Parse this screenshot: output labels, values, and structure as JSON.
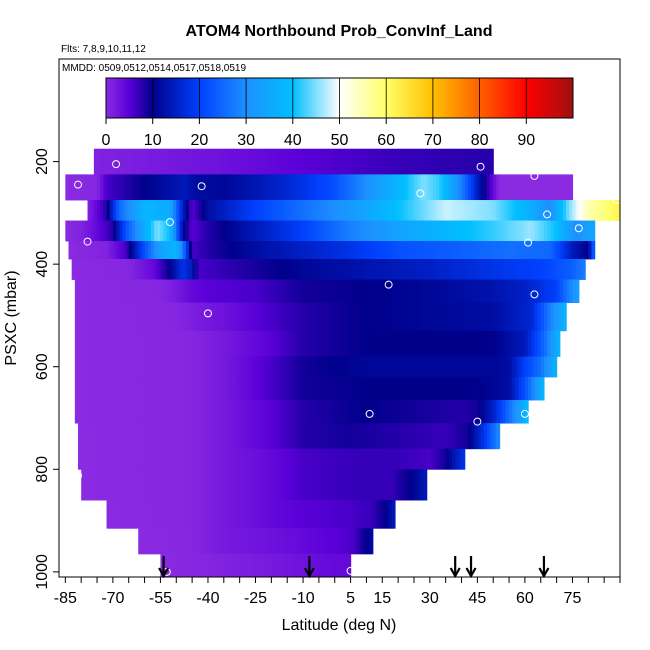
{
  "chart_data": {
    "type": "heatmap",
    "title": "ATOM4 Northbound Prob_ConvInf_Land",
    "flights_label": "Flts: 7,8,9,10,11,12",
    "dates_label": "MMDD: 0509,0512,0514,0517,0518,0519",
    "xlabel": "Latitude (deg N)",
    "ylabel": "PSXC (mbar)",
    "xlim": [
      -87,
      90
    ],
    "ylim": [
      1010,
      0
    ],
    "x_ticks": [
      -85,
      -70,
      -55,
      -40,
      -25,
      -10,
      5,
      15,
      30,
      45,
      60,
      75
    ],
    "x_minor_step": 5,
    "y_ticks": [
      200,
      400,
      600,
      800,
      1000
    ],
    "colorbar": {
      "min": 0,
      "max": 100,
      "ticks": [
        0,
        10,
        20,
        30,
        40,
        50,
        60,
        70,
        80,
        90
      ],
      "stops": [
        {
          "v": 0,
          "c": "#8a2be2"
        },
        {
          "v": 5,
          "c": "#5a00d8"
        },
        {
          "v": 10,
          "c": "#00008b"
        },
        {
          "v": 20,
          "c": "#0040ff"
        },
        {
          "v": 30,
          "c": "#1e90ff"
        },
        {
          "v": 40,
          "c": "#00bfff"
        },
        {
          "v": 50,
          "c": "#ffffff"
        },
        {
          "v": 60,
          "c": "#ffff66"
        },
        {
          "v": 70,
          "c": "#ffc000"
        },
        {
          "v": 80,
          "c": "#ff6000"
        },
        {
          "v": 90,
          "c": "#ff0000"
        },
        {
          "v": 100,
          "c": "#a01010"
        }
      ]
    },
    "pressure_levels": [
      {
        "p_top": 175,
        "p_bot": 225,
        "lat_min": -76,
        "lat_max": 50,
        "knots": [
          [
            -76,
            1
          ],
          [
            -55,
            2
          ],
          [
            -35,
            3
          ],
          [
            -10,
            5
          ],
          [
            20,
            7
          ],
          [
            50,
            8
          ]
        ]
      },
      {
        "p_top": 225,
        "p_bot": 275,
        "lat_min": -85,
        "lat_max": 75,
        "knots": [
          [
            -85,
            0
          ],
          [
            -75,
            0.5
          ],
          [
            -72,
            6
          ],
          [
            -60,
            10
          ],
          [
            -47,
            14
          ],
          [
            -45,
            12
          ],
          [
            -35,
            11
          ],
          [
            -15,
            16
          ],
          [
            0,
            22
          ],
          [
            10,
            30
          ],
          [
            20,
            38
          ],
          [
            28,
            45
          ],
          [
            33,
            42
          ],
          [
            40,
            28
          ],
          [
            46,
            12
          ],
          [
            48,
            8
          ],
          [
            52,
            0
          ],
          [
            75,
            0
          ]
        ]
      },
      {
        "p_top": 275,
        "p_bot": 315,
        "lat_min": -78,
        "lat_max": 90,
        "knots": [
          [
            -78,
            1
          ],
          [
            -72,
            8
          ],
          [
            -68,
            25
          ],
          [
            -60,
            38
          ],
          [
            -52,
            36
          ],
          [
            -48,
            15
          ],
          [
            -45,
            5
          ],
          [
            -40,
            12
          ],
          [
            -25,
            20
          ],
          [
            -10,
            26
          ],
          [
            5,
            32
          ],
          [
            20,
            40
          ],
          [
            35,
            48
          ],
          [
            50,
            45
          ],
          [
            60,
            38
          ],
          [
            68,
            30
          ],
          [
            74,
            45
          ],
          [
            80,
            55
          ],
          [
            90,
            62
          ]
        ]
      },
      {
        "p_top": 315,
        "p_bot": 355,
        "lat_min": -85,
        "lat_max": 82,
        "knots": [
          [
            -85,
            0
          ],
          [
            -80,
            1
          ],
          [
            -75,
            4
          ],
          [
            -70,
            8
          ],
          [
            -66,
            22
          ],
          [
            -56,
            45
          ],
          [
            -52,
            40
          ],
          [
            -48,
            12
          ],
          [
            -45,
            5
          ],
          [
            -40,
            8
          ],
          [
            -25,
            14
          ],
          [
            -10,
            20
          ],
          [
            5,
            28
          ],
          [
            20,
            34
          ],
          [
            35,
            38
          ],
          [
            50,
            42
          ],
          [
            62,
            46
          ],
          [
            70,
            40
          ],
          [
            76,
            30
          ],
          [
            82,
            35
          ]
        ]
      },
      {
        "p_top": 355,
        "p_bot": 390,
        "lat_min": -84,
        "lat_max": 82,
        "knots": [
          [
            -84,
            0
          ],
          [
            -72,
            1
          ],
          [
            -66,
            6
          ],
          [
            -60,
            22
          ],
          [
            -55,
            34
          ],
          [
            -50,
            38
          ],
          [
            -47,
            22
          ],
          [
            -45,
            6
          ],
          [
            -40,
            8
          ],
          [
            -25,
            12
          ],
          [
            -10,
            15
          ],
          [
            5,
            18
          ],
          [
            20,
            22
          ],
          [
            40,
            24
          ],
          [
            55,
            26
          ],
          [
            68,
            25
          ],
          [
            75,
            14
          ],
          [
            80,
            10
          ],
          [
            82,
            26
          ]
        ]
      },
      {
        "p_top": 390,
        "p_bot": 430,
        "lat_min": -83,
        "lat_max": 79,
        "knots": [
          [
            -83,
            0
          ],
          [
            -65,
            0.5
          ],
          [
            -57,
            4
          ],
          [
            -52,
            10
          ],
          [
            -48,
            18
          ],
          [
            -45,
            14
          ],
          [
            -43,
            6
          ],
          [
            -30,
            8
          ],
          [
            -10,
            11
          ],
          [
            10,
            13
          ],
          [
            30,
            15
          ],
          [
            50,
            18
          ],
          [
            65,
            20
          ],
          [
            75,
            24
          ],
          [
            79,
            28
          ]
        ]
      },
      {
        "p_top": 430,
        "p_bot": 475,
        "lat_min": -82,
        "lat_max": 77,
        "knots": [
          [
            -82,
            0
          ],
          [
            -55,
            0.5
          ],
          [
            -50,
            2
          ],
          [
            -45,
            4
          ],
          [
            -40,
            5
          ],
          [
            -25,
            6
          ],
          [
            -10,
            9
          ],
          [
            10,
            10
          ],
          [
            30,
            11
          ],
          [
            50,
            13
          ],
          [
            60,
            15
          ],
          [
            70,
            20
          ],
          [
            75,
            30
          ],
          [
            77,
            34
          ]
        ]
      },
      {
        "p_top": 475,
        "p_bot": 530,
        "lat_min": -82,
        "lat_max": 73,
        "knots": [
          [
            -82,
            0
          ],
          [
            -50,
            0.5
          ],
          [
            -45,
            1.5
          ],
          [
            -35,
            3
          ],
          [
            -25,
            5
          ],
          [
            -10,
            8
          ],
          [
            10,
            10
          ],
          [
            30,
            11
          ],
          [
            50,
            12
          ],
          [
            62,
            16
          ],
          [
            68,
            28
          ],
          [
            73,
            38
          ]
        ]
      },
      {
        "p_top": 530,
        "p_bot": 580,
        "lat_min": -82,
        "lat_max": 71,
        "knots": [
          [
            -82,
            0
          ],
          [
            -45,
            0.5
          ],
          [
            -35,
            2
          ],
          [
            -20,
            5
          ],
          [
            -10,
            8
          ],
          [
            10,
            10
          ],
          [
            30,
            10
          ],
          [
            50,
            10
          ],
          [
            60,
            14
          ],
          [
            66,
            25
          ],
          [
            71,
            38
          ]
        ]
      },
      {
        "p_top": 580,
        "p_bot": 620,
        "lat_min": -82,
        "lat_max": 70,
        "knots": [
          [
            -82,
            0
          ],
          [
            -45,
            0.5
          ],
          [
            -35,
            2
          ],
          [
            -20,
            6
          ],
          [
            -10,
            9
          ],
          [
            10,
            11
          ],
          [
            30,
            11
          ],
          [
            50,
            11
          ],
          [
            55,
            12
          ],
          [
            60,
            20
          ],
          [
            65,
            26
          ],
          [
            70,
            38
          ]
        ]
      },
      {
        "p_top": 620,
        "p_bot": 665,
        "lat_min": -82,
        "lat_max": 66,
        "knots": [
          [
            -82,
            0
          ],
          [
            -45,
            0.5
          ],
          [
            -35,
            2
          ],
          [
            -20,
            6
          ],
          [
            -10,
            9
          ],
          [
            10,
            10
          ],
          [
            30,
            10
          ],
          [
            45,
            10
          ],
          [
            55,
            12
          ],
          [
            60,
            22
          ],
          [
            66,
            38
          ]
        ]
      },
      {
        "p_top": 665,
        "p_bot": 710,
        "lat_min": -82,
        "lat_max": 61,
        "knots": [
          [
            -82,
            0
          ],
          [
            -45,
            0.5
          ],
          [
            -35,
            2
          ],
          [
            -20,
            5
          ],
          [
            -10,
            8
          ],
          [
            10,
            10
          ],
          [
            25,
            9
          ],
          [
            40,
            8
          ],
          [
            45,
            9
          ],
          [
            50,
            15
          ],
          [
            56,
            28
          ],
          [
            61,
            40
          ]
        ]
      },
      {
        "p_top": 710,
        "p_bot": 760,
        "lat_min": -81,
        "lat_max": 52,
        "knots": [
          [
            -81,
            0
          ],
          [
            -45,
            0.5
          ],
          [
            -35,
            2
          ],
          [
            -20,
            5
          ],
          [
            -10,
            8
          ],
          [
            5,
            9
          ],
          [
            20,
            8
          ],
          [
            35,
            7
          ],
          [
            42,
            9
          ],
          [
            47,
            18
          ],
          [
            52,
            30
          ]
        ]
      },
      {
        "p_top": 760,
        "p_bot": 800,
        "lat_min": -81,
        "lat_max": 41,
        "knots": [
          [
            -81,
            0
          ],
          [
            -45,
            0.5
          ],
          [
            -35,
            2
          ],
          [
            -20,
            4
          ],
          [
            -10,
            6
          ],
          [
            5,
            7
          ],
          [
            20,
            7
          ],
          [
            30,
            6
          ],
          [
            35,
            9
          ],
          [
            38,
            14
          ],
          [
            41,
            18
          ]
        ]
      },
      {
        "p_top": 800,
        "p_bot": 860,
        "lat_min": -80,
        "lat_max": 29,
        "knots": [
          [
            -80,
            0
          ],
          [
            -45,
            0.5
          ],
          [
            -35,
            2
          ],
          [
            -20,
            4
          ],
          [
            -10,
            6
          ],
          [
            5,
            7
          ],
          [
            18,
            7
          ],
          [
            24,
            10
          ],
          [
            29,
            14
          ]
        ]
      },
      {
        "p_top": 860,
        "p_bot": 915,
        "lat_min": -72,
        "lat_max": 19,
        "knots": [
          [
            -72,
            0
          ],
          [
            -45,
            0.5
          ],
          [
            -35,
            2
          ],
          [
            -20,
            4
          ],
          [
            -10,
            5
          ],
          [
            5,
            6
          ],
          [
            12,
            7
          ],
          [
            16,
            10
          ],
          [
            19,
            14
          ]
        ]
      },
      {
        "p_top": 915,
        "p_bot": 965,
        "lat_min": -62,
        "lat_max": 12,
        "knots": [
          [
            -62,
            0
          ],
          [
            -45,
            0.5
          ],
          [
            -35,
            2
          ],
          [
            -20,
            3
          ],
          [
            -10,
            4
          ],
          [
            0,
            5
          ],
          [
            6,
            6
          ],
          [
            9,
            9
          ],
          [
            12,
            12
          ]
        ]
      },
      {
        "p_top": 965,
        "p_bot": 1010,
        "lat_min": -55,
        "lat_max": 5,
        "knots": [
          [
            -55,
            0
          ],
          [
            -45,
            0.5
          ],
          [
            -35,
            1
          ],
          [
            -20,
            2
          ],
          [
            -10,
            3
          ],
          [
            0,
            4
          ],
          [
            5,
            4
          ]
        ]
      }
    ],
    "observation_points": [
      {
        "lat": -85,
        "p": 210
      },
      {
        "lat": -81,
        "p": 245
      },
      {
        "lat": -69,
        "p": 205
      },
      {
        "lat": -42,
        "p": 248
      },
      {
        "lat": -52,
        "p": 318
      },
      {
        "lat": -78,
        "p": 356
      },
      {
        "lat": -40,
        "p": 496
      },
      {
        "lat": -81,
        "p": 812
      },
      {
        "lat": -53,
        "p": 1000
      },
      {
        "lat": 5,
        "p": 998
      },
      {
        "lat": 11,
        "p": 692
      },
      {
        "lat": 17,
        "p": 440
      },
      {
        "lat": 27,
        "p": 262
      },
      {
        "lat": 46,
        "p": 210
      },
      {
        "lat": 45,
        "p": 707
      },
      {
        "lat": 60,
        "p": 692
      },
      {
        "lat": 61,
        "p": 358
      },
      {
        "lat": 63,
        "p": 459
      },
      {
        "lat": 63,
        "p": 228
      },
      {
        "lat": 67,
        "p": 303
      },
      {
        "lat": 74,
        "p": 213
      },
      {
        "lat": 77,
        "p": 330
      },
      {
        "lat": 89,
        "p": 275
      }
    ],
    "flight_arrows_lat": [
      -54,
      -8,
      38,
      43,
      66
    ]
  }
}
